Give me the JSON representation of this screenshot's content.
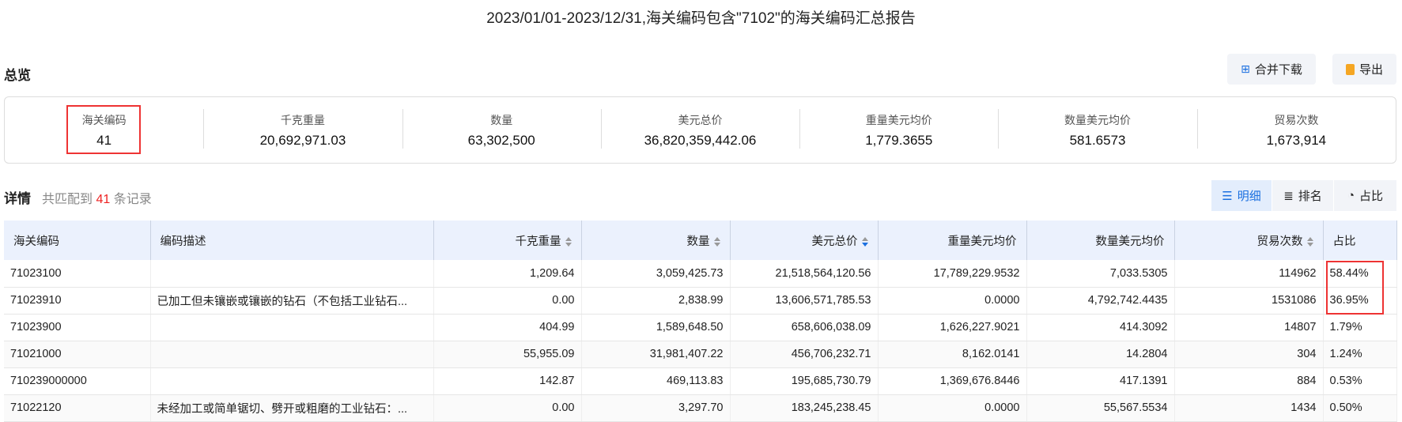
{
  "title": "2023/01/01-2023/12/31,海关编码包含\"7102\"的海关编码汇总报告",
  "overview": {
    "label": "总览",
    "merge_download": "合并下载",
    "export": "导出",
    "stats": [
      {
        "label": "海关编码",
        "value": "41"
      },
      {
        "label": "千克重量",
        "value": "20,692,971.03"
      },
      {
        "label": "数量",
        "value": "63,302,500"
      },
      {
        "label": "美元总价",
        "value": "36,820,359,442.06"
      },
      {
        "label": "重量美元均价",
        "value": "1,779.3655"
      },
      {
        "label": "数量美元均价",
        "value": "581.6573"
      },
      {
        "label": "贸易次数",
        "value": "1,673,914"
      }
    ]
  },
  "detail": {
    "label": "详情",
    "prefix": "共匹配到",
    "count": "41",
    "suffix": "条记录",
    "views": [
      "明细",
      "排名",
      "占比"
    ]
  },
  "table": {
    "columns": [
      "海关编码",
      "编码描述",
      "千克重量",
      "数量",
      "美元总价",
      "重量美元均价",
      "数量美元均价",
      "贸易次数",
      "占比"
    ],
    "rows": [
      [
        "71023100",
        "",
        "1,209.64",
        "3,059,425.73",
        "21,518,564,120.56",
        "17,789,229.9532",
        "7,033.5305",
        "114962",
        "58.44%"
      ],
      [
        "71023910",
        "已加工但未镶嵌或镶嵌的钻石（不包括工业钻石...",
        "0.00",
        "2,838.99",
        "13,606,571,785.53",
        "0.0000",
        "4,792,742.4435",
        "1531086",
        "36.95%"
      ],
      [
        "71023900",
        "",
        "404.99",
        "1,589,648.50",
        "658,606,038.09",
        "1,626,227.9021",
        "414.3092",
        "14807",
        "1.79%"
      ],
      [
        "71021000",
        "",
        "55,955.09",
        "31,981,407.22",
        "456,706,232.71",
        "8,162.0141",
        "14.2804",
        "304",
        "1.24%"
      ],
      [
        "710239000000",
        "",
        "142.87",
        "469,113.83",
        "195,685,730.79",
        "1,369,676.8446",
        "417.1391",
        "884",
        "0.53%"
      ],
      [
        "71022120",
        "未经加工或简单锯切、劈开或粗磨的工业钻石：...",
        "0.00",
        "3,297.70",
        "183,245,238.45",
        "0.0000",
        "55,567.5534",
        "1434",
        "0.50%"
      ]
    ]
  },
  "colors": {
    "accent": "#1a6fe0",
    "highlight": "#e33333",
    "header_bg": "#ebf1fd"
  }
}
